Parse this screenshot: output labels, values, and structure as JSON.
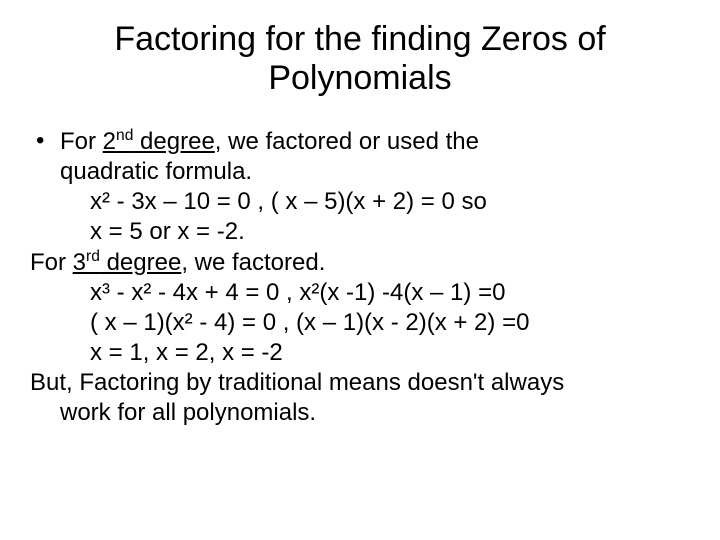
{
  "title": "Factoring for the finding Zeros of Polynomials",
  "bullet_glyph": "•",
  "lines": {
    "l1a": "For ",
    "l1_ord_num": "2",
    "l1_ord_suf": "nd",
    "l1_ord_after": " degree",
    "l1b": ", we factored or used the",
    "l2": "quadratic formula.",
    "l3": "x² - 3x – 10 = 0 ,   ( x – 5)(x + 2) = 0   so",
    "l4": "x = 5 or x = -2.",
    "l5a": "For ",
    "l5_ord_num": "3",
    "l5_ord_suf": "rd",
    "l5_ord_after": " degree",
    "l5b": ", we factored.",
    "l6": "x³ - x² - 4x + 4 = 0 ,     x²(x -1) -4(x – 1) =0",
    "l7": "( x – 1)(x² - 4) = 0  ,    (x – 1)(x - 2)(x + 2) =0",
    "l8": " x = 1, x = 2, x = -2",
    "l9": "But, Factoring by traditional means doesn't always",
    "l10": "work  for all polynomials."
  },
  "style": {
    "background": "#ffffff",
    "text_color": "#000000",
    "title_fontsize": 34,
    "body_fontsize": 24
  }
}
